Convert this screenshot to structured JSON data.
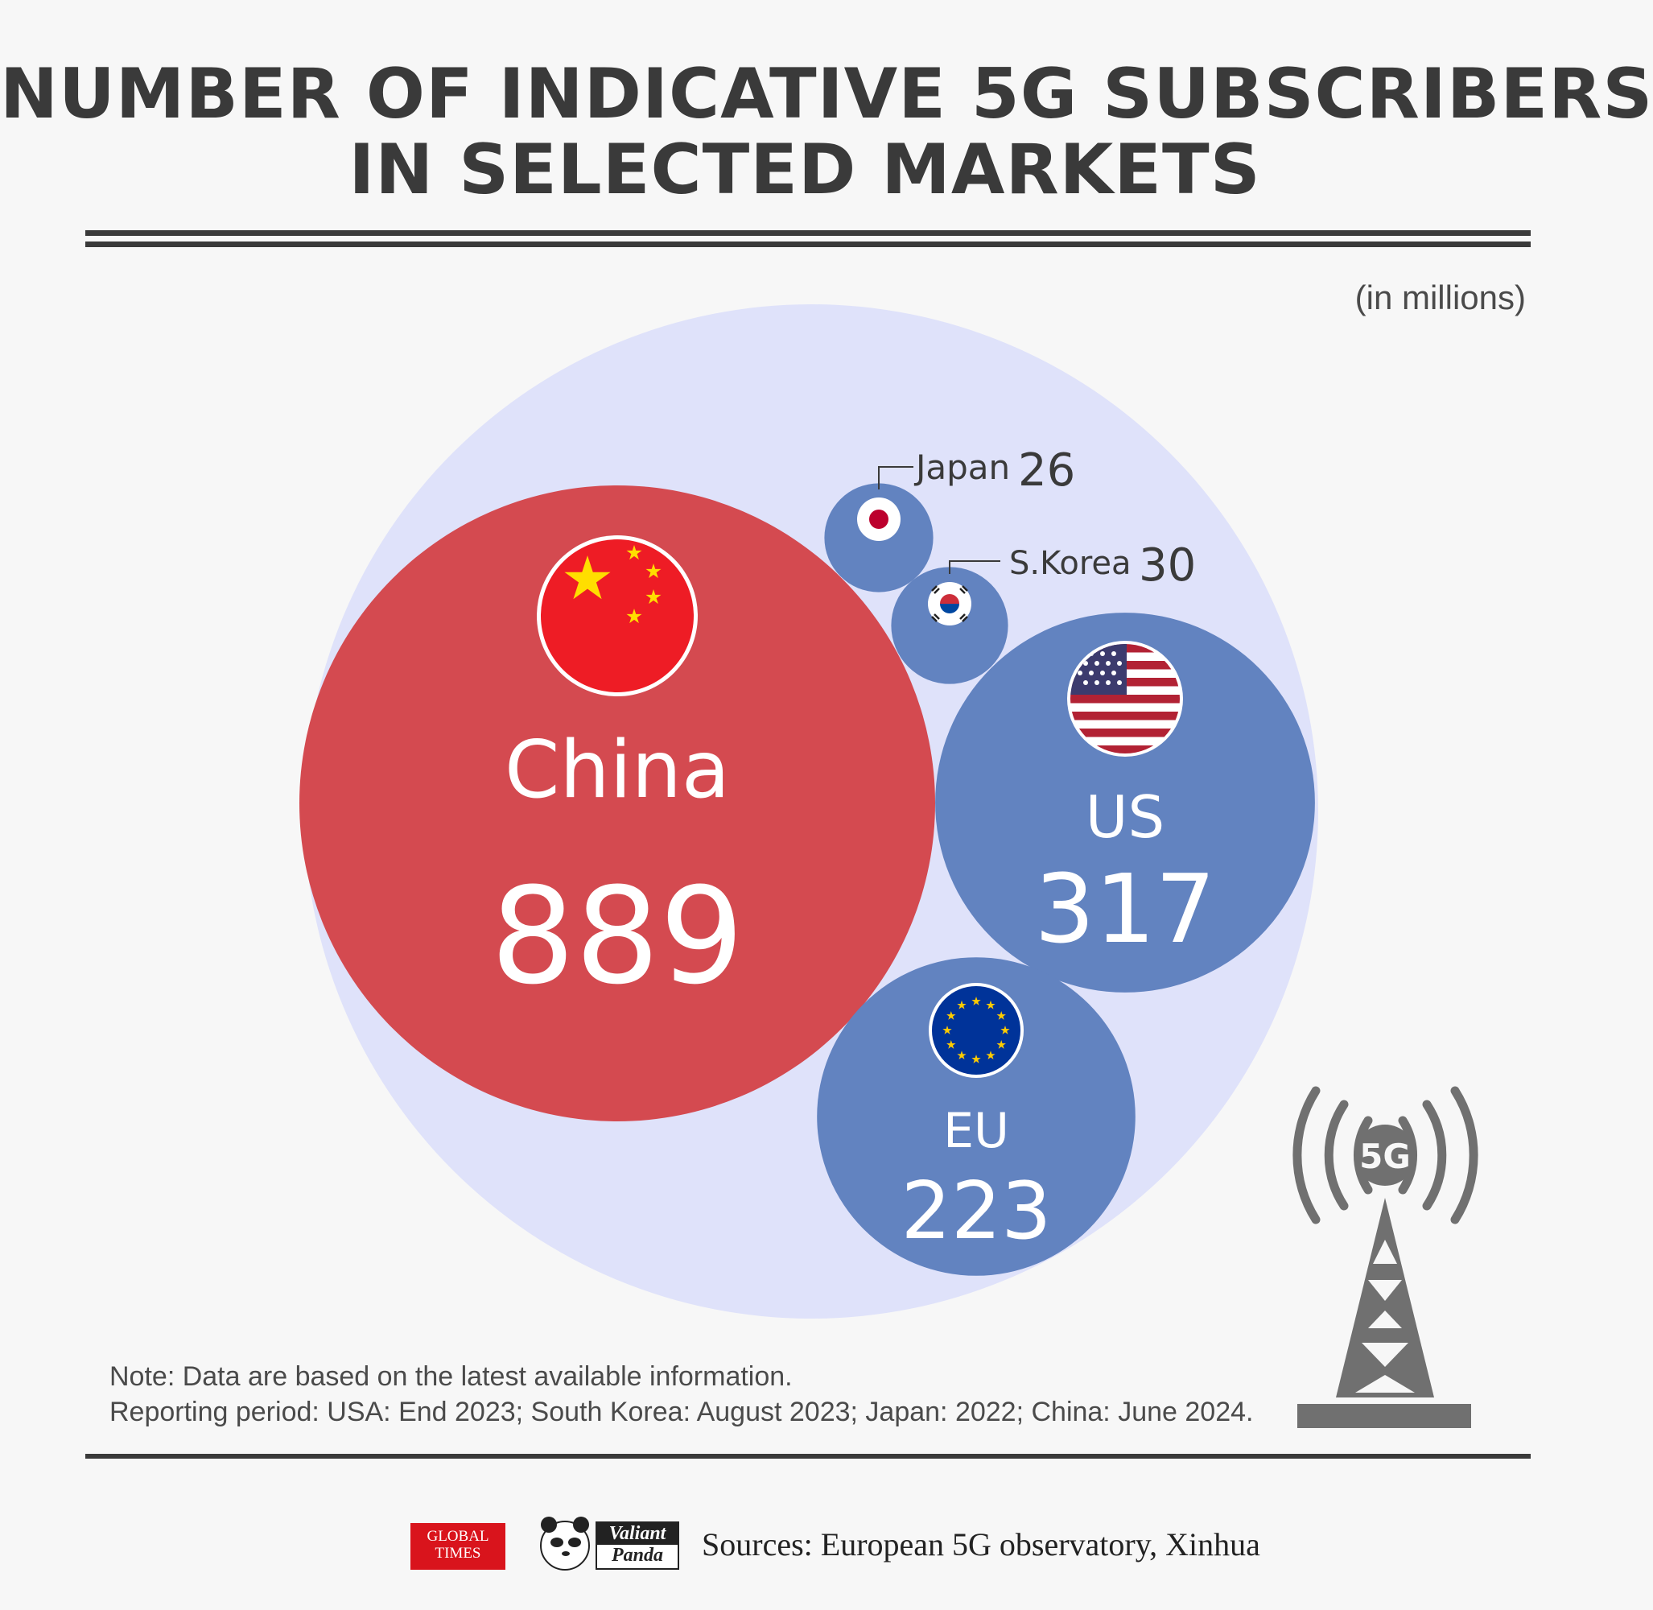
{
  "title_line1": "NUMBER OF INDICATIVE 5G SUBSCRIBERS",
  "title_line2": "IN SELECTED MARKETS",
  "unit_label": "(in millions)",
  "note_line1": "Note: Data are based on the latest available information.",
  "note_line2": "Reporting period: USA: End 2023; South Korea: August 2023; Japan: 2022; China: June 2024.",
  "sources": "Sources: European 5G observatory, Xinhua",
  "logos": {
    "global_times_l1": "GLOBAL",
    "global_times_l2": "TIMES",
    "valiant": "Valiant",
    "panda": "Panda"
  },
  "tower_badge": "5G",
  "colors": {
    "china": "#d44a50",
    "others": "#6283c0",
    "outer": "#dfe2fa",
    "text_dark": "#3a3a3a"
  },
  "chart_data": {
    "type": "bubble",
    "title": "NUMBER OF INDICATIVE 5G SUBSCRIBERS IN SELECTED MARKETS",
    "unit": "(in millions)",
    "series": [
      {
        "name": "China",
        "value": 889,
        "flag": "china-flag-icon"
      },
      {
        "name": "US",
        "value": 317,
        "flag": "us-flag-icon"
      },
      {
        "name": "EU",
        "value": 223,
        "flag": "eu-flag-icon"
      },
      {
        "name": "S.Korea",
        "value": 30,
        "flag": "south-korea-flag-icon"
      },
      {
        "name": "Japan",
        "value": 26,
        "flag": "japan-flag-icon"
      }
    ]
  }
}
